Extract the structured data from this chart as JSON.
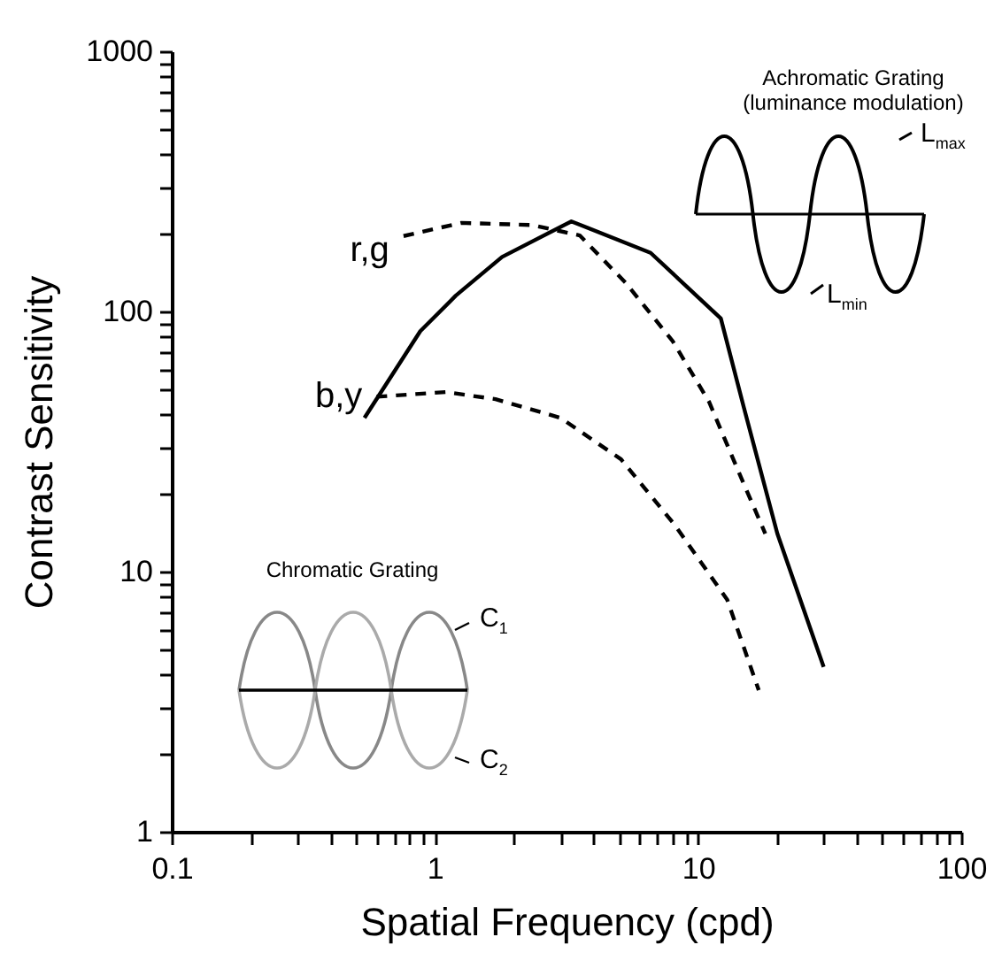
{
  "chart_data": {
    "type": "line",
    "xlabel": "Spatial Frequency (cpd)",
    "ylabel": "Contrast Sensitivity",
    "log": "xy",
    "grid": false,
    "marker": "none",
    "xlim": [
      0.1,
      100
    ],
    "ylim": [
      1,
      1000
    ],
    "xticks": [
      0.1,
      {
        "value": 0.2,
        "label": null
      },
      {
        "value": 0.3,
        "label": null
      },
      {
        "value": 0.4,
        "label": null
      },
      {
        "value": 0.5,
        "label": null
      },
      {
        "value": 0.6,
        "label": null
      },
      {
        "value": 0.7,
        "label": null
      },
      {
        "value": 0.8,
        "label": null
      },
      {
        "value": 0.9,
        "label": null
      },
      1,
      {
        "value": 2,
        "label": null
      },
      {
        "value": 3,
        "label": null
      },
      {
        "value": 4,
        "label": null
      },
      {
        "value": 5,
        "label": null
      },
      {
        "value": 6,
        "label": null
      },
      {
        "value": 7,
        "label": null
      },
      {
        "value": 8,
        "label": null
      },
      {
        "value": 9,
        "label": null
      },
      10,
      {
        "value": 20,
        "label": null
      },
      {
        "value": 30,
        "label": null
      },
      {
        "value": 40,
        "label": null
      },
      {
        "value": 50,
        "label": null
      },
      {
        "value": 60,
        "label": null
      },
      {
        "value": 70,
        "label": null
      },
      {
        "value": 80,
        "label": null
      },
      {
        "value": 90,
        "label": null
      },
      100
    ],
    "yticks": [
      1,
      {
        "value": 2,
        "label": null
      },
      {
        "value": 3,
        "label": null
      },
      {
        "value": 4,
        "label": null
      },
      {
        "value": 5,
        "label": null
      },
      {
        "value": 6,
        "label": null
      },
      {
        "value": 7,
        "label": null
      },
      {
        "value": 8,
        "label": null
      },
      {
        "value": 9,
        "label": null
      },
      10,
      {
        "value": 20,
        "label": null
      },
      {
        "value": 30,
        "label": null
      },
      {
        "value": 40,
        "label": null
      },
      {
        "value": 50,
        "label": null
      },
      {
        "value": 60,
        "label": null
      },
      {
        "value": 70,
        "label": null
      },
      {
        "value": 80,
        "label": null
      },
      {
        "value": 90,
        "label": null
      },
      100,
      {
        "value": 200,
        "label": null
      },
      {
        "value": 300,
        "label": null
      },
      {
        "value": 400,
        "label": null
      },
      {
        "value": 500,
        "label": null
      },
      {
        "value": 600,
        "label": null
      },
      {
        "value": 700,
        "label": null
      },
      {
        "value": 800,
        "label": null
      },
      {
        "value": 900,
        "label": null
      },
      1000
    ],
    "series": [
      {
        "color": "#000000",
        "line_style": "solid",
        "x": [
          0.54,
          0.88,
          1.2,
          1.8,
          3.3,
          6.6,
          12.2,
          14.9,
          20,
          30
        ],
        "values": [
          39,
          84,
          115,
          162,
          222,
          168,
          94,
          43,
          14,
          4.3
        ]
      },
      {
        "name": "r,g",
        "color": "#000000",
        "line_style": "dashed",
        "x": [
          0.76,
          1.26,
          2.34,
          3.55,
          5.3,
          8,
          11,
          14.3,
          18
        ],
        "values": [
          195,
          219,
          215,
          196,
          129,
          77,
          45,
          24,
          14
        ]
      },
      {
        "name": "b,y",
        "color": "#000000",
        "line_style": "dashed",
        "x": [
          0.6,
          1.1,
          1.7,
          3.0,
          5.1,
          8.2,
          12.9,
          17
        ],
        "values": [
          47,
          49,
          46,
          39,
          27,
          15,
          7.8,
          3.5
        ]
      }
    ],
    "annotations": [
      "Achromatic Grating",
      "(luminance modulation)",
      "L$_{max}$",
      "L$_{min}$",
      "Chromatic Grating",
      "C$_{1}$",
      "C$_{2}$"
    ]
  }
}
